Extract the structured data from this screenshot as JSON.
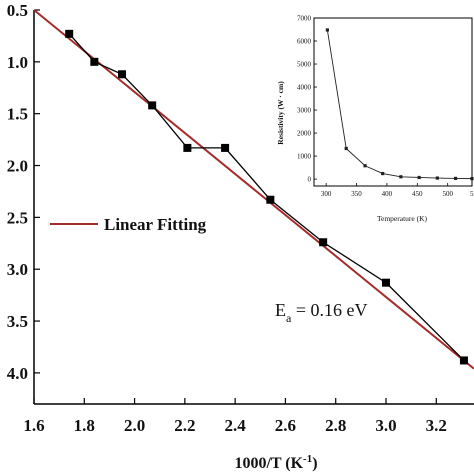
{
  "chart_data": [
    {
      "type": "line",
      "xlabel": "1000/T (K",
      "xlabel_sup": "-1",
      "xlabel_tail": ")",
      "xlim": [
        1.6,
        3.35
      ],
      "ylim": [
        -4.3,
        -0.5
      ],
      "y_inverted": true,
      "x_ticks": [
        "1.6",
        "1.8",
        "2.0",
        "2.2",
        "2.4",
        "2.6",
        "2.8",
        "3.0",
        "3.2"
      ],
      "y_ticks": [
        "0.5",
        "1.0",
        "1.5",
        "2.0",
        "2.5",
        "3.0",
        "3.5",
        "4.0"
      ],
      "series": [
        {
          "name": "",
          "color": "#000000",
          "marker": "square",
          "x": [
            1.74,
            1.84,
            1.95,
            2.07,
            2.21,
            2.36,
            2.54,
            2.75,
            3.0,
            3.31
          ],
          "y": [
            -0.73,
            -1.0,
            -1.12,
            -1.42,
            -1.83,
            -1.83,
            -2.33,
            -2.74,
            -3.13,
            -3.88
          ]
        },
        {
          "name": "Linear Fitting",
          "color": "#a52a2a",
          "marker": "none",
          "x": [
            1.6,
            3.35
          ],
          "y": [
            -0.5,
            -3.96
          ]
        }
      ],
      "legend_position": "middle-left",
      "annotation": {
        "prefix": "E",
        "sub": "a",
        "suffix": " = 0.16 eV"
      },
      "grid": false
    },
    {
      "type": "line",
      "inset": true,
      "xlabel": "Temperature (K)",
      "ylabel": "Resistivity (W · cm)",
      "xlim": [
        280,
        540
      ],
      "ylim": [
        -300,
        7000
      ],
      "x_ticks": [
        "300",
        "350",
        "400",
        "450",
        "500",
        "5"
      ],
      "y_ticks": [
        "0",
        "1000",
        "2000",
        "3000",
        "4000",
        "5000",
        "6000",
        "7000"
      ],
      "series": [
        {
          "name": "",
          "color": "#222222",
          "marker": "square",
          "x": [
            302,
            333,
            364,
            393,
            423,
            453,
            483,
            513,
            540
          ],
          "y": [
            6480,
            1330,
            580,
            240,
            100,
            70,
            45,
            30,
            20
          ]
        }
      ],
      "grid": false
    }
  ]
}
